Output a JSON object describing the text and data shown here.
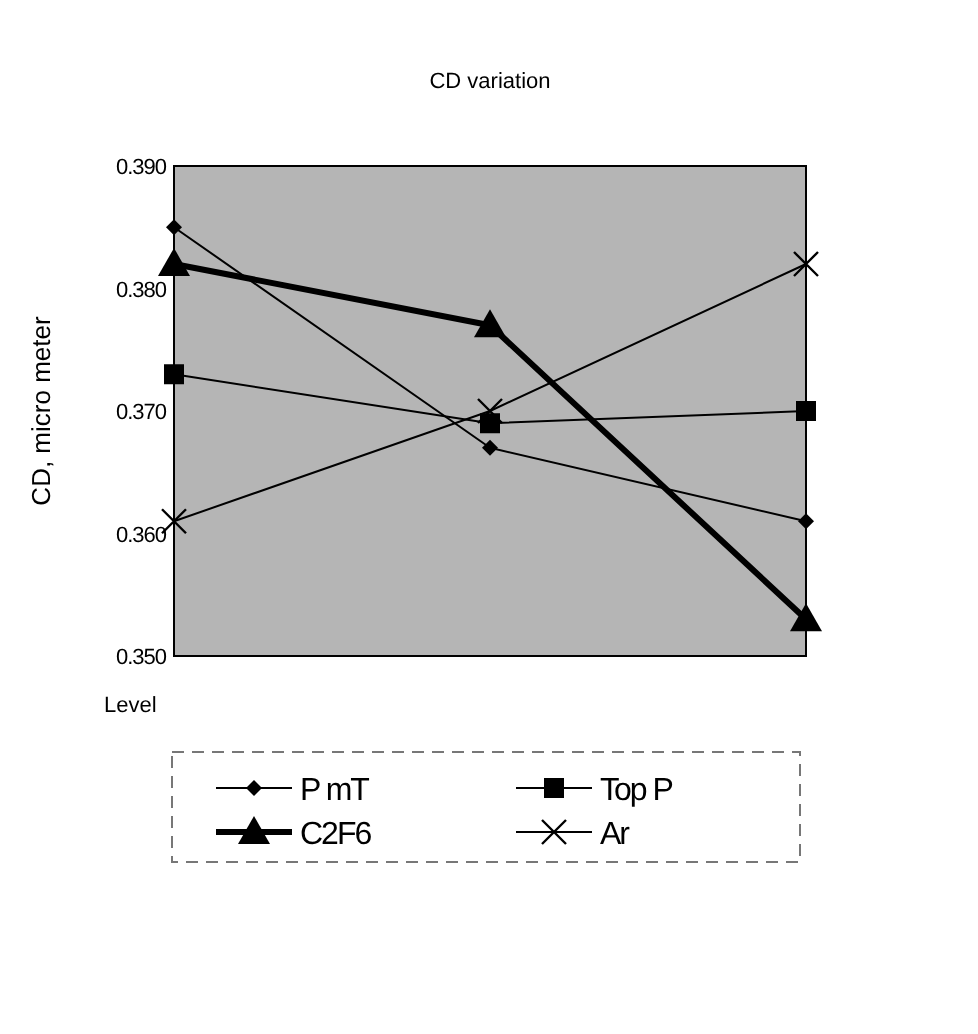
{
  "chart_data": {
    "type": "line",
    "title": "CD variation",
    "xlabel": "Level",
    "ylabel": "CD, micro meter",
    "categories": [
      null,
      null,
      null
    ],
    "ylim": [
      0.35,
      0.39
    ],
    "yticks": [
      {
        "value": 0.35,
        "label": "0.350"
      },
      {
        "value": 0.36,
        "label": "0.360"
      },
      {
        "value": 0.37,
        "label": "0.370"
      },
      {
        "value": 0.38,
        "label": "0.380"
      },
      {
        "value": 0.39,
        "label": "0.390"
      }
    ],
    "grid": false,
    "legend": "bottom",
    "series": [
      {
        "name": "P mT",
        "color": "#000000",
        "marker": "diamond",
        "values": [
          0.385,
          0.367,
          0.361
        ]
      },
      {
        "name": "Top P",
        "color": "#000000",
        "marker": "square",
        "values": [
          0.373,
          0.369,
          0.37
        ]
      },
      {
        "name": "C2F6",
        "color": "#000000",
        "marker": "triangle",
        "values": [
          0.382,
          0.377,
          0.353
        ]
      },
      {
        "name": "Ar",
        "color": "#000000",
        "marker": "cross",
        "values": [
          0.361,
          0.37,
          0.382
        ]
      }
    ]
  }
}
